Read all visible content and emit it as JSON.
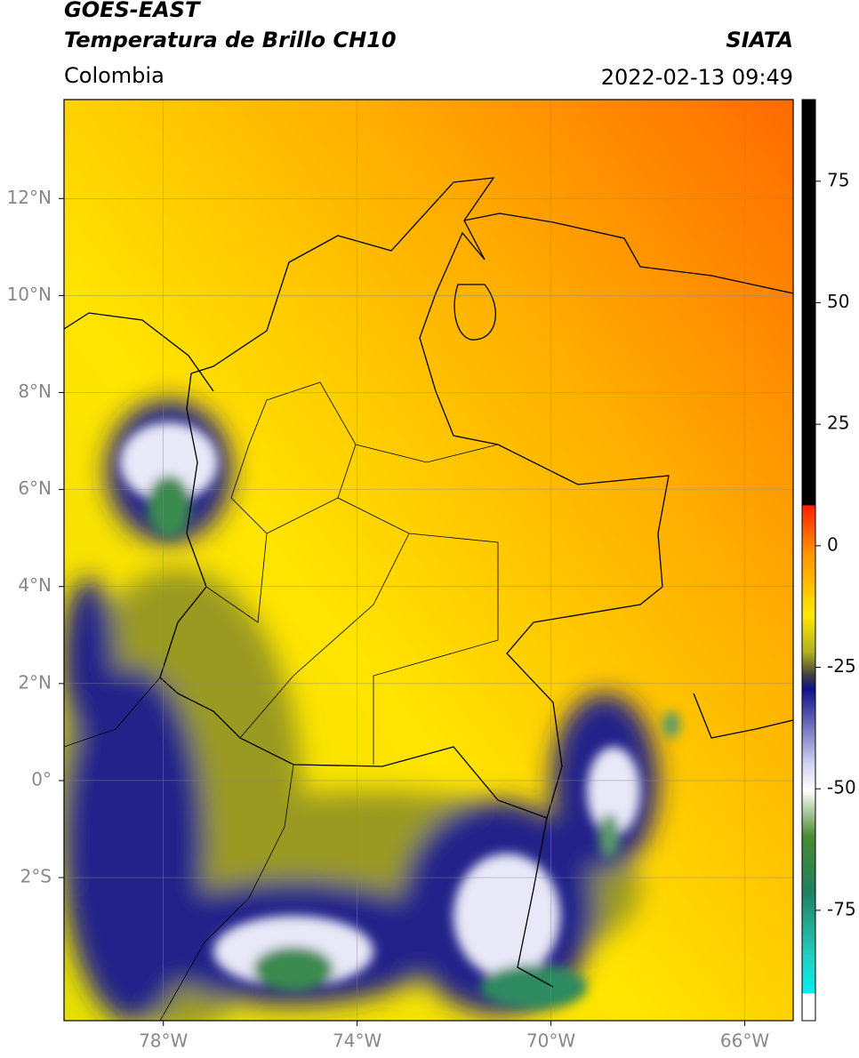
{
  "header": {
    "title": "GOES-EAST",
    "subtitle": "Temperatura de Brillo CH10",
    "region": "Colombia",
    "source": "SIATA",
    "datetime": "2022-02-13 09:49"
  },
  "map": {
    "xlim": [
      -80.05,
      -65.0
    ],
    "ylim": [
      -4.95,
      14.04
    ],
    "xticks": [
      {
        "value": -78,
        "label": "78°W"
      },
      {
        "value": -74,
        "label": "74°W"
      },
      {
        "value": -70,
        "label": "70°W"
      },
      {
        "value": -66,
        "label": "66°W"
      }
    ],
    "yticks": [
      {
        "value": 12,
        "label": "12°N"
      },
      {
        "value": 10,
        "label": "10°N"
      },
      {
        "value": 8,
        "label": "8°N"
      },
      {
        "value": 6,
        "label": "6°N"
      },
      {
        "value": 4,
        "label": "4°N"
      },
      {
        "value": 2,
        "label": "2°N"
      },
      {
        "value": 0,
        "label": "0°"
      },
      {
        "value": -2,
        "label": "2°S"
      }
    ],
    "grid": true
  },
  "colorbar": {
    "lim": [
      -97.7,
      91.8
    ],
    "ticks": [
      75,
      50,
      25,
      0,
      -25,
      -50,
      -75
    ]
  }
}
